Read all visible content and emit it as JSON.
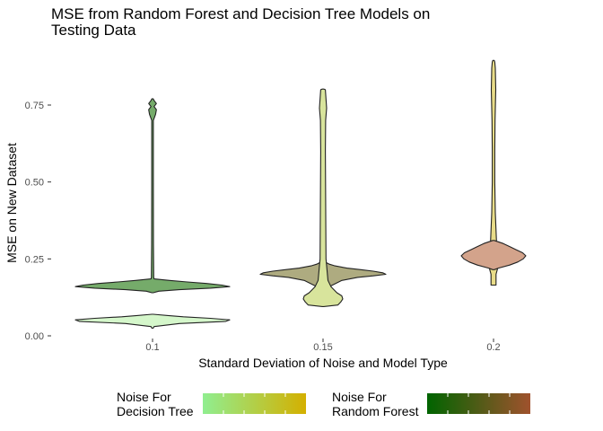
{
  "chart_data": {
    "type": "violin",
    "title": "MSE from Random Forest and Decision Tree Models on Testing Data",
    "title_lines": [
      "MSE from Random Forest and Decision Tree Models on",
      "Testing Data"
    ],
    "xlabel": "Standard Deviation of Noise and Model Type",
    "ylabel": "MSE on New Dataset",
    "categories": [
      "0.1",
      "0.15",
      "0.2"
    ],
    "y_ticks": [
      0.0,
      0.25,
      0.5,
      0.75
    ],
    "y_tick_labels": [
      "0.00",
      "0.25",
      "0.50",
      "0.75"
    ],
    "ylim": [
      0.0,
      0.92
    ],
    "grid": false,
    "legend_position": "bottom",
    "legends": [
      {
        "title_lines": [
          "Noise For",
          "Decision Tree"
        ],
        "gradient": [
          "#90ee90",
          "#d4b000"
        ]
      },
      {
        "title_lines": [
          "Noise For",
          "Random Forest"
        ],
        "gradient": [
          "#006400",
          "#a0522d"
        ]
      }
    ],
    "series": [
      {
        "category": "0.1",
        "model": "Random Forest",
        "color": "#75ab6a",
        "half_width_max": 86,
        "profile": [
          [
            0.14,
            0
          ],
          [
            0.145,
            0.08
          ],
          [
            0.15,
            0.35
          ],
          [
            0.155,
            0.75
          ],
          [
            0.16,
            1.0
          ],
          [
            0.165,
            0.9
          ],
          [
            0.17,
            0.7
          ],
          [
            0.175,
            0.45
          ],
          [
            0.18,
            0.22
          ],
          [
            0.185,
            0.02
          ],
          [
            0.19,
            0.015
          ],
          [
            0.3,
            0.012
          ],
          [
            0.5,
            0.01
          ],
          [
            0.7,
            0.01
          ],
          [
            0.72,
            0.04
          ],
          [
            0.735,
            0.05
          ],
          [
            0.745,
            0.02
          ],
          [
            0.755,
            0.05
          ],
          [
            0.765,
            0.02
          ],
          [
            0.77,
            0
          ]
        ]
      },
      {
        "category": "0.1",
        "model": "Decision Tree",
        "color": "#d5f7cb",
        "half_width_max": 86,
        "profile": [
          [
            0.025,
            0
          ],
          [
            0.03,
            0.02
          ],
          [
            0.04,
            0.35
          ],
          [
            0.047,
            0.95
          ],
          [
            0.052,
            1.0
          ],
          [
            0.057,
            0.75
          ],
          [
            0.062,
            0.4
          ],
          [
            0.066,
            0.2
          ],
          [
            0.07,
            0
          ]
        ]
      },
      {
        "category": "0.15",
        "model": "Random Forest",
        "color": "#aeab80",
        "half_width_max": 70,
        "profile": [
          [
            0.15,
            0
          ],
          [
            0.16,
            0.1
          ],
          [
            0.17,
            0.2
          ],
          [
            0.18,
            0.3
          ],
          [
            0.19,
            0.55
          ],
          [
            0.195,
            0.8
          ],
          [
            0.2,
            1.0
          ],
          [
            0.205,
            0.95
          ],
          [
            0.21,
            0.8
          ],
          [
            0.215,
            0.6
          ],
          [
            0.22,
            0.38
          ],
          [
            0.228,
            0.18
          ],
          [
            0.233,
            0.1
          ],
          [
            0.237,
            0.06
          ],
          [
            0.242,
            0
          ]
        ]
      },
      {
        "category": "0.15",
        "model": "Decision Tree",
        "color": "#d8e49c",
        "half_width_max": 22,
        "profile": [
          [
            0.095,
            0
          ],
          [
            0.1,
            0.75
          ],
          [
            0.11,
            0.9
          ],
          [
            0.12,
            1.0
          ],
          [
            0.13,
            0.95
          ],
          [
            0.14,
            0.7
          ],
          [
            0.16,
            0.4
          ],
          [
            0.18,
            0.25
          ],
          [
            0.25,
            0.15
          ],
          [
            0.6,
            0.12
          ],
          [
            0.7,
            0.13
          ],
          [
            0.74,
            0.18
          ],
          [
            0.77,
            0.15
          ],
          [
            0.8,
            0.12
          ],
          [
            0.802,
            0
          ]
        ]
      },
      {
        "category": "0.2",
        "model": "Decision Tree",
        "color": "#e8dc88",
        "half_width_max": 28,
        "profile": [
          [
            0.165,
            0
          ],
          [
            0.165,
            0.1
          ],
          [
            0.2,
            0.1
          ],
          [
            0.215,
            0.15
          ],
          [
            0.23,
            0.2
          ],
          [
            0.26,
            0.25
          ],
          [
            0.3,
            0.12
          ],
          [
            0.4,
            0.07
          ],
          [
            0.5,
            0.05
          ],
          [
            0.6,
            0.05
          ],
          [
            0.7,
            0.06
          ],
          [
            0.8,
            0.09
          ],
          [
            0.87,
            0.07
          ],
          [
            0.89,
            0.05
          ],
          [
            0.895,
            0
          ]
        ]
      },
      {
        "category": "0.2",
        "model": "Random Forest",
        "color": "#d3a38b",
        "half_width_max": 36,
        "profile": [
          [
            0.215,
            0
          ],
          [
            0.22,
            0.15
          ],
          [
            0.23,
            0.5
          ],
          [
            0.24,
            0.75
          ],
          [
            0.25,
            0.92
          ],
          [
            0.26,
            1.0
          ],
          [
            0.27,
            0.9
          ],
          [
            0.28,
            0.7
          ],
          [
            0.29,
            0.5
          ],
          [
            0.3,
            0.3
          ],
          [
            0.31,
            0
          ]
        ]
      }
    ]
  }
}
